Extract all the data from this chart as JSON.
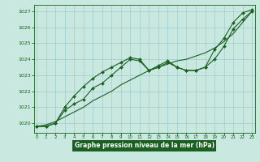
{
  "xlabel": "Graphe pression niveau de la mer (hPa)",
  "background_color": "#c8e8e0",
  "grid_color": "#a0cccc",
  "line_color": "#1a6020",
  "x_ticks": [
    0,
    1,
    2,
    3,
    4,
    5,
    6,
    7,
    8,
    9,
    10,
    11,
    12,
    13,
    14,
    15,
    16,
    17,
    18,
    19,
    20,
    21,
    22,
    23
  ],
  "ylim": [
    1019.4,
    1027.4
  ],
  "xlim": [
    -0.3,
    23.3
  ],
  "yticks": [
    1020,
    1021,
    1022,
    1023,
    1024,
    1025,
    1026,
    1027
  ],
  "series_marked": [
    1019.8,
    1019.8,
    1020.0,
    1021.0,
    1021.7,
    1022.3,
    1022.8,
    1023.2,
    1023.5,
    1023.8,
    1024.1,
    1024.0,
    1023.3,
    1023.6,
    1023.9,
    1023.5,
    1023.3,
    1023.3,
    1023.5,
    1024.6,
    1025.3,
    1026.3,
    1026.9,
    1027.1
  ],
  "series_mid": [
    1019.8,
    1019.8,
    1020.0,
    1020.8,
    1021.2,
    1021.5,
    1022.2,
    1022.5,
    1023.0,
    1023.5,
    1024.0,
    1023.9,
    1023.3,
    1023.5,
    1023.8,
    1023.5,
    1023.3,
    1023.3,
    1023.5,
    1024.0,
    1024.8,
    1025.9,
    1026.5,
    1027.0
  ],
  "series_straight": [
    1019.8,
    1019.9,
    1020.1,
    1020.4,
    1020.7,
    1021.0,
    1021.4,
    1021.7,
    1022.0,
    1022.4,
    1022.7,
    1023.0,
    1023.3,
    1023.5,
    1023.7,
    1023.9,
    1024.0,
    1024.2,
    1024.4,
    1024.7,
    1025.1,
    1025.6,
    1026.3,
    1027.0
  ]
}
